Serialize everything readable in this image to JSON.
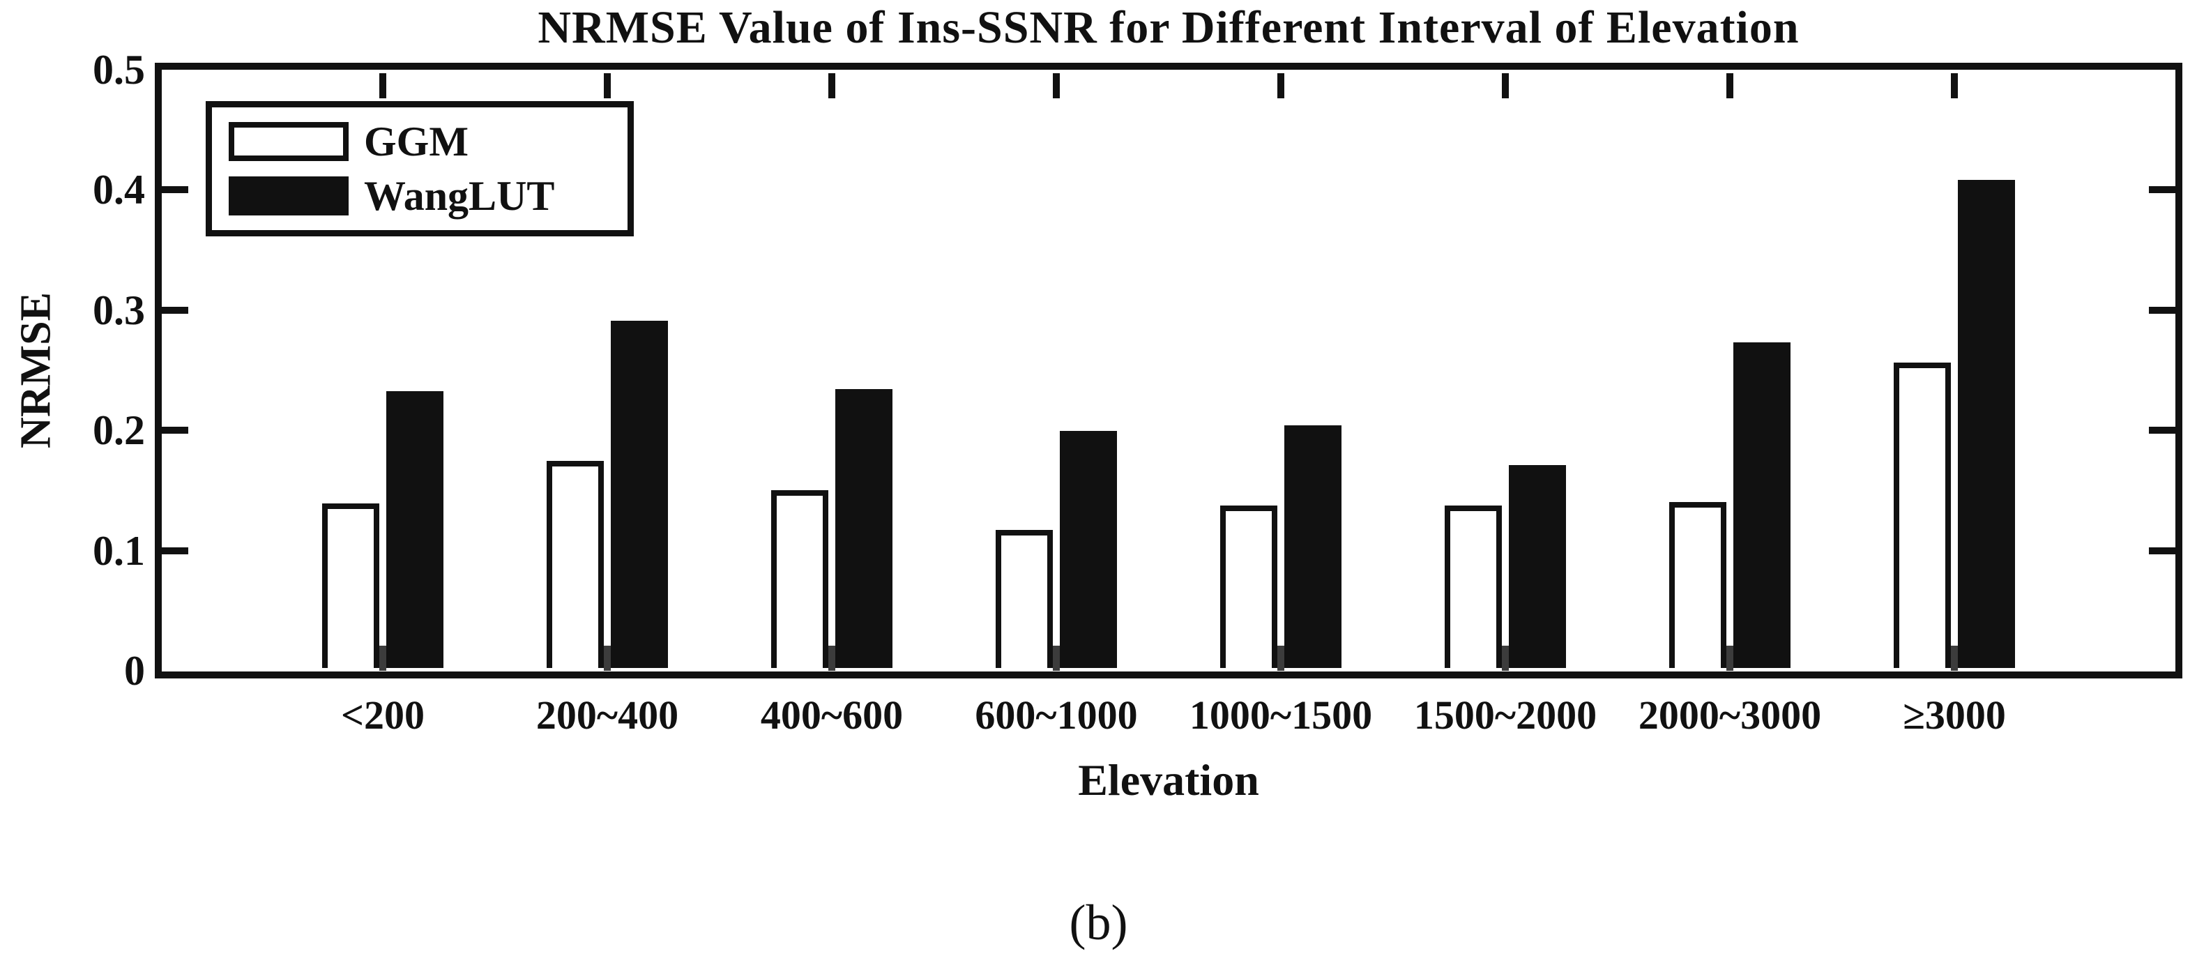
{
  "figure": {
    "caption": "(b)"
  },
  "colors": {
    "ink": "#111111",
    "background": "#ffffff",
    "tick_stub": "#3c3c3c",
    "ggm_fill": "#ffffff",
    "wanglut_fill": "#111111"
  },
  "chart_data": {
    "type": "bar",
    "title": "NRMSE Value of Ins-SSNR for Different Interval of Elevation",
    "xlabel": "Elevation",
    "ylabel": "NRMSE",
    "categories": [
      "<200",
      "200~400",
      "400~600",
      "600~1000",
      "1000~1500",
      "1500~2000",
      "2000~3000",
      "≥3000"
    ],
    "series": [
      {
        "name": "GGM",
        "fill": "#ffffff",
        "edge": "#111111",
        "values": [
          0.137,
          0.172,
          0.148,
          0.115,
          0.135,
          0.135,
          0.138,
          0.254
        ]
      },
      {
        "name": "WangLUT",
        "fill": "#111111",
        "edge": "#111111",
        "values": [
          0.23,
          0.289,
          0.232,
          0.197,
          0.202,
          0.169,
          0.271,
          0.406
        ]
      }
    ],
    "ylim": [
      0,
      0.5
    ],
    "yticks": [
      0,
      0.1,
      0.2,
      0.3,
      0.4,
      0.5
    ],
    "ytick_labels": [
      "0",
      "0.1",
      "0.2",
      "0.3",
      "0.4",
      "0.5"
    ],
    "grid": false,
    "legend_position": "top-left-inside"
  }
}
